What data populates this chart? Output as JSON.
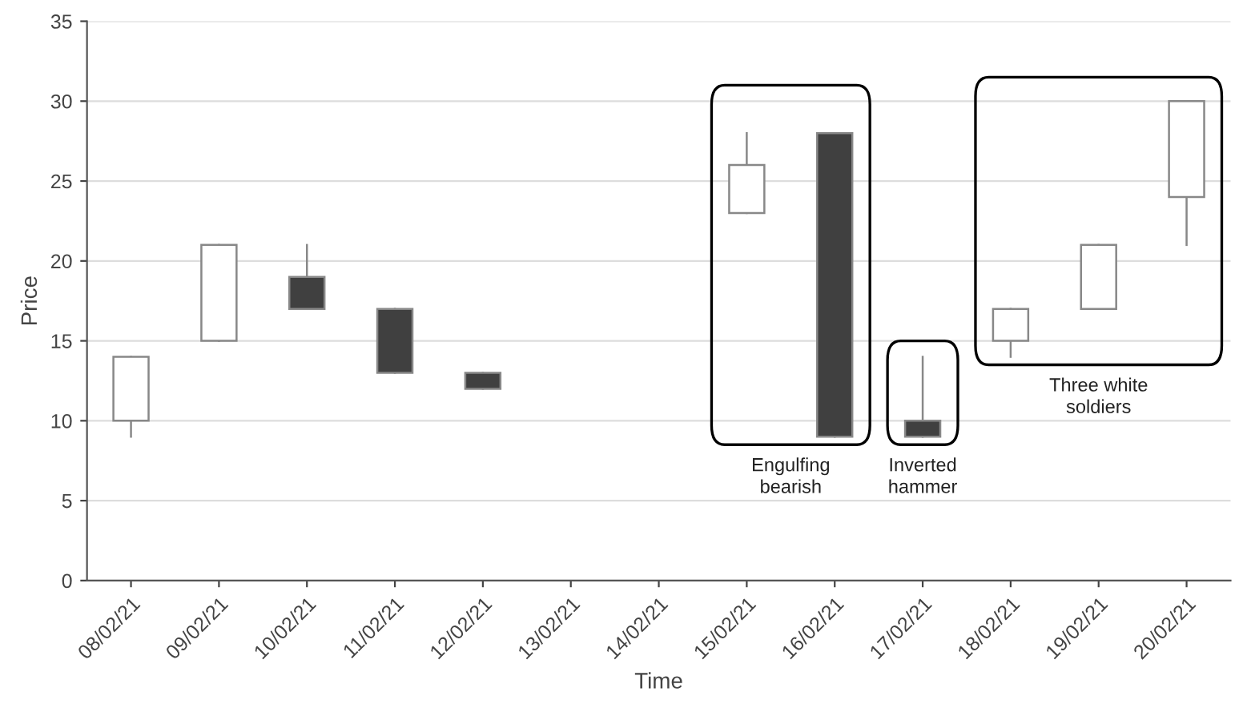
{
  "chart_data": {
    "type": "candlestick",
    "xlabel": "Time",
    "ylabel": "Price",
    "categories": [
      "08/02/21",
      "09/02/21",
      "10/02/21",
      "11/02/21",
      "12/02/21",
      "13/02/21",
      "14/02/21",
      "15/02/21",
      "16/02/21",
      "17/02/21",
      "18/02/21",
      "19/02/21",
      "20/02/21"
    ],
    "ohlc": [
      [
        10,
        14,
        9,
        14
      ],
      [
        15,
        21,
        15,
        21
      ],
      [
        19,
        21,
        17,
        17
      ],
      [
        17,
        17,
        13,
        13
      ],
      [
        13,
        13,
        12,
        12
      ],
      null,
      null,
      [
        23,
        28,
        23,
        26
      ],
      [
        28,
        28,
        9,
        9
      ],
      [
        10,
        14,
        9,
        9
      ],
      [
        15,
        17,
        14,
        17
      ],
      [
        17,
        21,
        17,
        21
      ],
      [
        24,
        30,
        21,
        30
      ]
    ],
    "colors": [
      "#ffffff",
      "#ffffff",
      "#404040",
      "#404040",
      "#404040",
      null,
      null,
      "#ffffff",
      "#404040",
      "#404040",
      "#ffffff",
      "#ffffff",
      "#ffffff"
    ],
    "ylim": [
      0,
      35
    ],
    "yticks": [
      0,
      5,
      10,
      15,
      20,
      25,
      30,
      35
    ],
    "grid": "y",
    "annotations": [
      "Engulfing bearish",
      "Inverted hammer",
      "Three white soldiers"
    ]
  }
}
